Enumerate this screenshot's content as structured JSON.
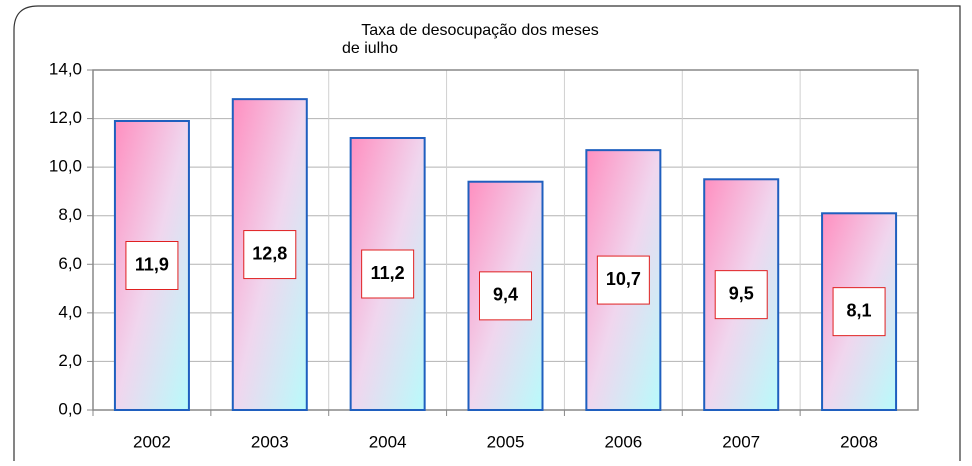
{
  "chart_data": {
    "type": "bar",
    "title": "Taxa de desocupação dos meses",
    "subtitle": "de julho",
    "categories": [
      "2002",
      "2003",
      "2004",
      "2005",
      "2006",
      "2007",
      "2008"
    ],
    "values": [
      11.9,
      12.8,
      11.2,
      9.4,
      10.7,
      9.5,
      8.1
    ],
    "value_labels": [
      "11,9",
      "12,8",
      "11,2",
      "9,4",
      "10,7",
      "9,5",
      "8,1"
    ],
    "color": "#1f5fbf",
    "ylim": [
      0,
      14
    ],
    "yticks": [
      {
        "value": 0,
        "label": "0,0"
      },
      {
        "value": 2,
        "label": "2,0"
      },
      {
        "value": 4,
        "label": "4,0"
      },
      {
        "value": 6,
        "label": "6,0"
      },
      {
        "value": 8,
        "label": "8,0"
      },
      {
        "value": 10,
        "label": "10,0"
      },
      {
        "value": 12,
        "label": "12,0"
      },
      {
        "value": 14,
        "label": "14,0"
      }
    ],
    "grid": true
  }
}
